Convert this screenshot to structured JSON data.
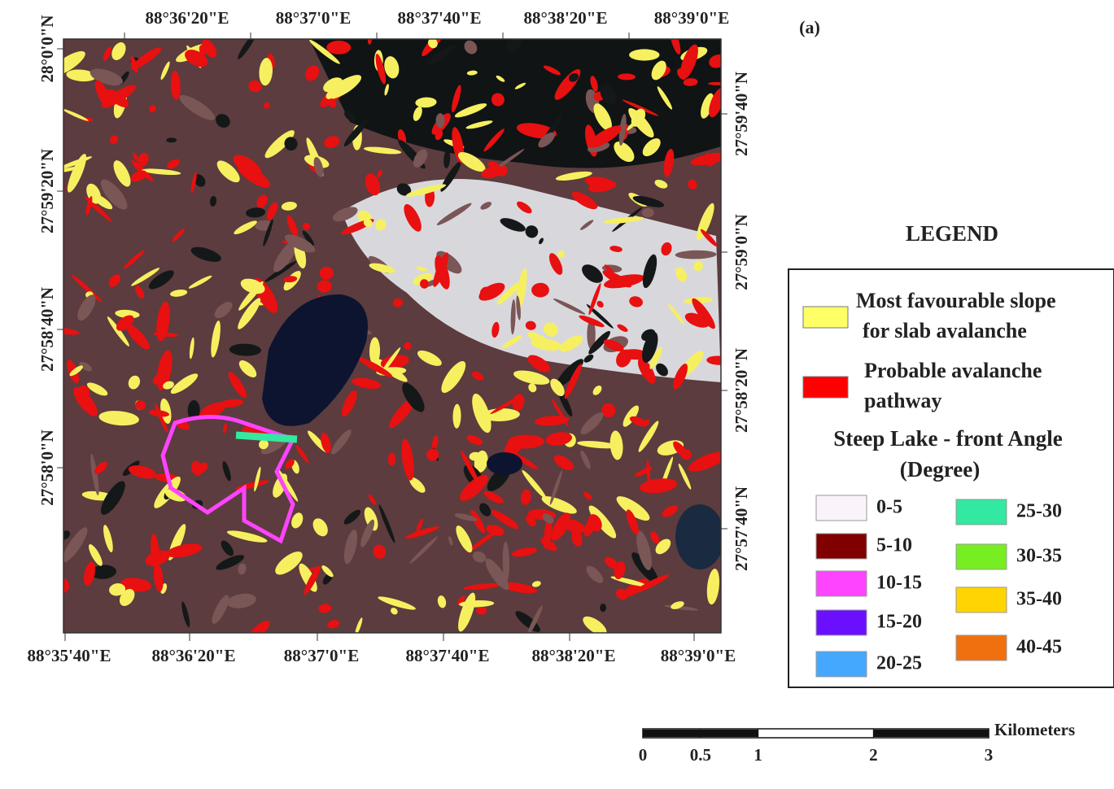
{
  "panel_label": "(a)",
  "top_lon_labels": [
    "88°36'20\"E",
    "88°37'0\"E",
    "88°37'40\"E",
    "88°38'20\"E",
    "88°39'0\"E"
  ],
  "bottom_lon_labels": [
    "88°35'40\"E",
    "88°36'20\"E",
    "88°37'0\"E",
    "88°37'40\"E",
    "88°38'20\"E",
    "88°39'0\"E"
  ],
  "left_lat_labels": [
    "28°0'0\"N",
    "27°59'20\"N",
    "27°58'40\"N",
    "27°58'0\"N"
  ],
  "right_lat_labels": [
    "27°59'40\"N",
    "27°59'0\"N",
    "27°58'20\"N",
    "27°57'40\"N"
  ],
  "legend": {
    "title": "LEGEND",
    "items": [
      {
        "label_lines": [
          "Most favourable slope",
          "for slab avalanche"
        ],
        "color": "#ffff66"
      },
      {
        "label_lines": [
          "Probable avalanche",
          "pathway"
        ],
        "color": "#ff0000"
      }
    ],
    "angle_heading": [
      "Steep Lake - front Angle",
      "(Degree)"
    ],
    "angle_classes": [
      {
        "label": "0-5",
        "color": "#faf4fa"
      },
      {
        "label": "5-10",
        "color": "#800000"
      },
      {
        "label": "10-15",
        "color": "#ff44ff"
      },
      {
        "label": "15-20",
        "color": "#6a10ff"
      },
      {
        "label": "20-25",
        "color": "#44a8ff"
      },
      {
        "label": "25-30",
        "color": "#33e8a0"
      },
      {
        "label": "30-35",
        "color": "#77ee22"
      },
      {
        "label": "35-40",
        "color": "#ffd400"
      },
      {
        "label": "40-45",
        "color": "#f07010"
      }
    ]
  },
  "scale_bar": {
    "unit": "Kilometers",
    "ticks": [
      0,
      0.5,
      1,
      2,
      3
    ]
  }
}
